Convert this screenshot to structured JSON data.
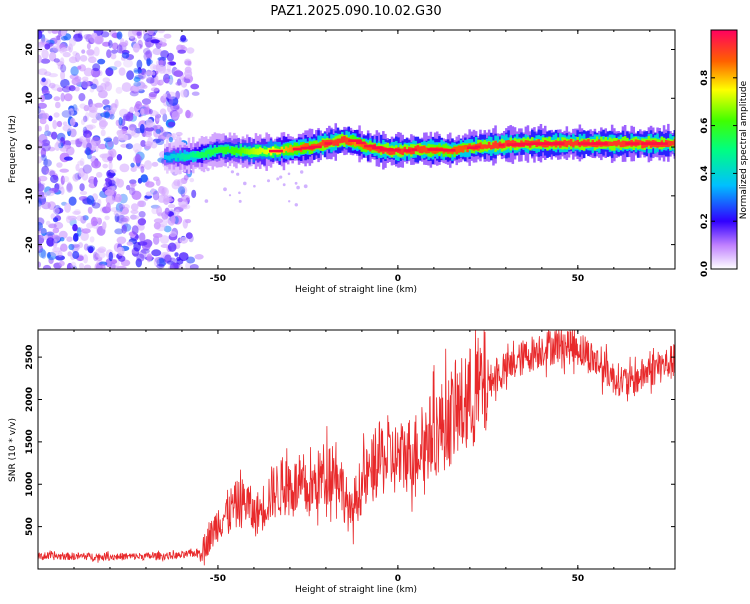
{
  "title": "PAZ1.2025.090.10.02.G30",
  "chart_data": [
    {
      "type": "heatmap",
      "xlabel": "Height of straight line (km)",
      "ylabel": "Frequency (Hz)",
      "xlim": [
        -100,
        77
      ],
      "ylim": [
        -25,
        24
      ],
      "xticks": [
        -50,
        0,
        50
      ],
      "yticks": [
        -20,
        -10,
        0,
        10,
        20
      ],
      "colorbar": {
        "label": "Normalized spectral amplitude",
        "range": [
          0,
          1
        ],
        "ticks": [
          0.0,
          0.2,
          0.4,
          0.6,
          0.8
        ]
      },
      "signal_ridge": {
        "height_km": [
          -65,
          -60,
          -55,
          -50,
          -45,
          -40,
          -35,
          -30,
          -25,
          -20,
          -15,
          -12,
          -10,
          -5,
          0,
          5,
          10,
          15,
          20,
          25,
          30,
          35,
          40,
          50,
          60,
          70,
          77
        ],
        "frequency_hz": [
          -2,
          -2,
          -1.5,
          -0.5,
          -0.8,
          -1,
          -0.8,
          -0.5,
          0,
          0.8,
          1.5,
          1,
          0.3,
          -0.5,
          -0.8,
          -0.5,
          -0.5,
          -0.8,
          0,
          0.2,
          0.5,
          0.7,
          0.7,
          0.7,
          0.7,
          0.7,
          0.7
        ],
        "amplitude": [
          0.3,
          0.4,
          0.5,
          0.55,
          0.6,
          0.7,
          0.75,
          0.85,
          0.9,
          0.95,
          0.95,
          0.85,
          0.9,
          0.95,
          0.95,
          0.95,
          0.9,
          0.9,
          0.92,
          0.95,
          0.95,
          0.95,
          0.95,
          0.95,
          0.95,
          0.95,
          0.95
        ]
      },
      "noise_region_km": [
        -100,
        -55
      ]
    },
    {
      "type": "line",
      "xlabel": "Height of straight line (km)",
      "ylabel": "SNR (10 * v/v)",
      "xlim": [
        -100,
        77
      ],
      "ylim": [
        0,
        2820
      ],
      "xticks": [
        -50,
        0,
        50
      ],
      "yticks": [
        500,
        1000,
        1500,
        2000,
        2500
      ],
      "color": "#e8292b",
      "series": [
        {
          "x": [
            -100,
            -90,
            -80,
            -70,
            -60,
            -55,
            -52,
            -50,
            -47,
            -45,
            -42,
            -40,
            -38,
            -35,
            -30,
            -25,
            -22,
            -20,
            -17,
            -15,
            -13,
            -12,
            -10,
            -8,
            -5,
            0,
            5,
            10,
            15,
            20,
            25,
            30,
            35,
            40,
            45,
            50,
            52,
            55,
            58,
            60,
            65,
            70,
            77
          ],
          "y": [
            150,
            150,
            145,
            150,
            160,
            200,
            380,
            560,
            680,
            750,
            800,
            620,
            700,
            900,
            1000,
            900,
            1050,
            1150,
            1200,
            900,
            600,
            800,
            1000,
            1100,
            1300,
            1300,
            1400,
            1600,
            1800,
            2000,
            2200,
            2350,
            2500,
            2600,
            2650,
            2620,
            2550,
            2450,
            2350,
            2250,
            2200,
            2350,
            2450
          ]
        }
      ]
    }
  ]
}
